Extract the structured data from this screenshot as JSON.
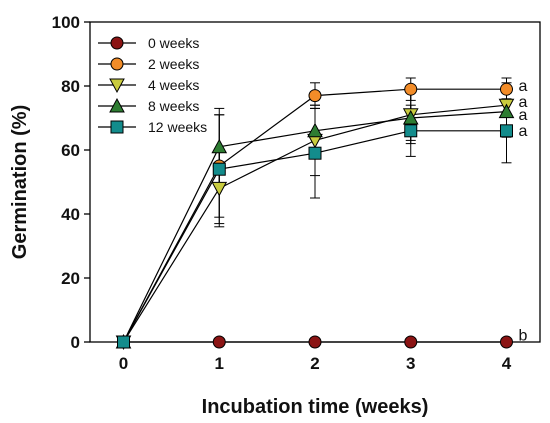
{
  "chart_data": {
    "type": "line",
    "xlabel": "Incubation time (weeks)",
    "ylabel": "Germination (%)",
    "x": [
      0,
      1,
      2,
      3,
      4
    ],
    "xlim": [
      -0.35,
      4.35
    ],
    "ylim": [
      0,
      100
    ],
    "xticks": [
      "0",
      "1",
      "2",
      "3",
      "4"
    ],
    "yticks": [
      "0",
      "20",
      "40",
      "60",
      "80",
      "100"
    ],
    "grid": false,
    "legend_position": "top-left",
    "series": [
      {
        "name": "0 weeks",
        "marker": "circle",
        "color": "#8b1414",
        "values": [
          0,
          0,
          0,
          0,
          0
        ],
        "errors": [
          0,
          0,
          0,
          0,
          0
        ]
      },
      {
        "name": "2 weeks",
        "marker": "circle",
        "color": "#f28c28",
        "values": [
          0,
          55,
          77,
          79,
          79
        ],
        "errors": [
          0,
          16,
          4,
          3.5,
          3.5
        ]
      },
      {
        "name": "4 weeks",
        "marker": "triangle-down",
        "color": "#c9cc3f",
        "values": [
          0,
          48,
          63,
          71,
          74
        ],
        "errors": [
          0,
          12,
          11,
          8,
          7
        ]
      },
      {
        "name": "8 weeks",
        "marker": "triangle-up",
        "color": "#2e7d32",
        "values": [
          0,
          61,
          66,
          70,
          72
        ],
        "errors": [
          0,
          12,
          8,
          8,
          8
        ]
      },
      {
        "name": "12 weeks",
        "marker": "square",
        "color": "#138c8c",
        "values": [
          0,
          54,
          59,
          66,
          66
        ],
        "errors": [
          0,
          17,
          14,
          8,
          10
        ]
      }
    ],
    "annotations": [
      {
        "text": "a",
        "series": "2 weeks",
        "x": 4,
        "y": 80
      },
      {
        "text": "a",
        "series": "4 weeks",
        "x": 4,
        "y": 75
      },
      {
        "text": "a",
        "series": "8 weeks",
        "x": 4,
        "y": 71
      },
      {
        "text": "a",
        "series": "12 weeks",
        "x": 4,
        "y": 66
      },
      {
        "text": "b",
        "series": "0 weeks",
        "x": 4,
        "y": 2
      }
    ]
  }
}
